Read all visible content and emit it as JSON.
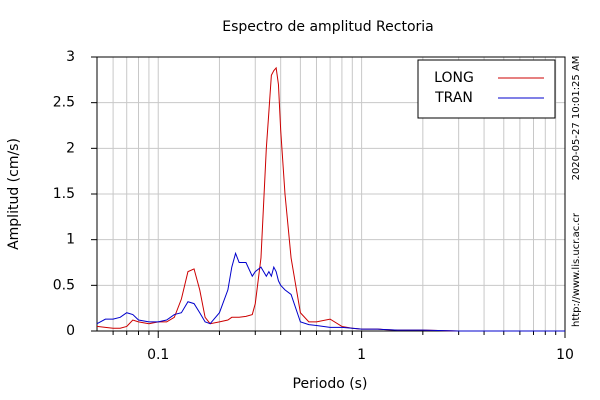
{
  "chart_data": {
    "type": "line",
    "title": "Espectro de amplitud Rectoria",
    "x_label": "Periodo (s)",
    "y_label": "Amplitud (cm/s)",
    "annotations": [
      "2020-05-27 10:01:25 AM",
      "http://www.lis.ucr.ac.cr"
    ],
    "x_scale": "log",
    "grid": true,
    "legend": "top-right",
    "xlim": [
      0.05,
      10
    ],
    "ylim": [
      0,
      3
    ],
    "xticks": [
      0.1,
      1,
      10
    ],
    "xminorticks": [
      0.06,
      0.07,
      0.08,
      0.09,
      0.2,
      0.3,
      0.4,
      0.5,
      0.6,
      0.7,
      0.8,
      0.9,
      2,
      3,
      4,
      5,
      6,
      7,
      8,
      9
    ],
    "yticks": [
      0,
      0.5,
      1,
      1.5,
      2,
      2.5,
      3
    ],
    "x": [
      0.05,
      0.055,
      0.06,
      0.065,
      0.07,
      0.075,
      0.08,
      0.09,
      0.1,
      0.11,
      0.12,
      0.13,
      0.14,
      0.15,
      0.16,
      0.17,
      0.18,
      0.2,
      0.22,
      0.23,
      0.24,
      0.25,
      0.27,
      0.29,
      0.3,
      0.32,
      0.34,
      0.35,
      0.36,
      0.37,
      0.38,
      0.39,
      0.4,
      0.42,
      0.45,
      0.5,
      0.55,
      0.6,
      0.7,
      0.8,
      0.9,
      1,
      1.2,
      1.5,
      2,
      3,
      5,
      7,
      10
    ],
    "series": [
      {
        "name": "LONG",
        "color": "#cc0000",
        "values": [
          0.05,
          0.04,
          0.03,
          0.03,
          0.05,
          0.12,
          0.1,
          0.08,
          0.1,
          0.1,
          0.15,
          0.35,
          0.65,
          0.68,
          0.45,
          0.15,
          0.08,
          0.1,
          0.12,
          0.15,
          0.15,
          0.15,
          0.16,
          0.18,
          0.3,
          0.8,
          2.0,
          2.4,
          2.8,
          2.85,
          2.88,
          2.7,
          2.2,
          1.5,
          0.8,
          0.2,
          0.1,
          0.1,
          0.13,
          0.05,
          0.03,
          0.02,
          0.02,
          0.01,
          0.01,
          0,
          0,
          0,
          0
        ]
      },
      {
        "name": "TRAN",
        "color": "#0000cc",
        "values": [
          0.08,
          0.13,
          0.13,
          0.15,
          0.2,
          0.18,
          0.12,
          0.1,
          0.1,
          0.12,
          0.18,
          0.2,
          0.32,
          0.3,
          0.2,
          0.1,
          0.08,
          0.2,
          0.45,
          0.7,
          0.85,
          0.75,
          0.75,
          0.6,
          0.65,
          0.7,
          0.6,
          0.65,
          0.6,
          0.7,
          0.65,
          0.55,
          0.5,
          0.45,
          0.4,
          0.1,
          0.07,
          0.06,
          0.04,
          0.04,
          0.03,
          0.02,
          0.02,
          0.01,
          0.01,
          0,
          0,
          0,
          0
        ]
      }
    ]
  }
}
